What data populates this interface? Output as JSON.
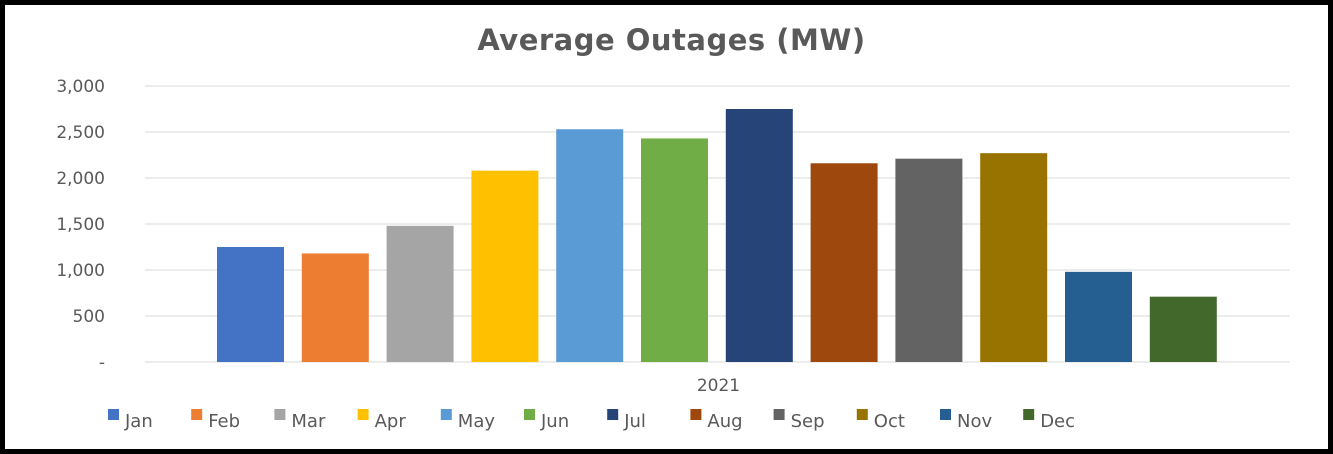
{
  "chart_data": {
    "type": "bar",
    "title": "Average Outages (MW)",
    "category": "2021",
    "ylim": [
      0,
      3000
    ],
    "y_ticks": [
      "-",
      "500",
      "1,000",
      "1,500",
      "2,000",
      "2,500",
      "3,000"
    ],
    "y_tick_values": [
      0,
      500,
      1000,
      1500,
      2000,
      2500,
      3000
    ],
    "grid": true,
    "legend_position": "bottom",
    "series": [
      {
        "name": "Jan",
        "value": 1250,
        "color": "#4472C4"
      },
      {
        "name": "Feb",
        "value": 1180,
        "color": "#ED7D31"
      },
      {
        "name": "Mar",
        "value": 1480,
        "color": "#A5A5A5"
      },
      {
        "name": "Apr",
        "value": 2080,
        "color": "#FFC000"
      },
      {
        "name": "May",
        "value": 2530,
        "color": "#5B9BD5"
      },
      {
        "name": "Jun",
        "value": 2430,
        "color": "#70AD47"
      },
      {
        "name": "Jul",
        "value": 2750,
        "color": "#264478"
      },
      {
        "name": "Aug",
        "value": 2160,
        "color": "#9E480E"
      },
      {
        "name": "Sep",
        "value": 2210,
        "color": "#636363"
      },
      {
        "name": "Oct",
        "value": 2270,
        "color": "#997300"
      },
      {
        "name": "Nov",
        "value": 980,
        "color": "#255E91"
      },
      {
        "name": "Dec",
        "value": 710,
        "color": "#43682B"
      }
    ]
  }
}
